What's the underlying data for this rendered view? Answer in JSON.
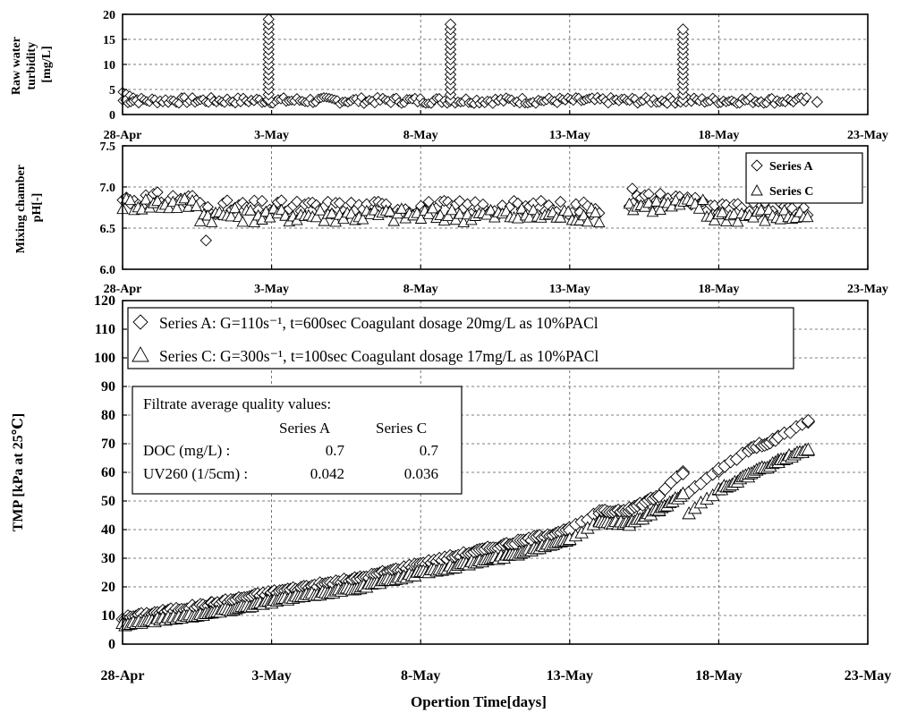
{
  "chart_data": [
    {
      "type": "scatter",
      "ylabel": [
        "Raw water",
        "turbidity",
        "[mg/L]"
      ],
      "ylim": [
        0,
        20
      ],
      "yticks": [
        "0",
        "5",
        "10",
        "15",
        "20"
      ],
      "xlim": [
        "2005-04-28",
        "2005-05-23"
      ],
      "xticks": [
        "28-Apr",
        "3-May",
        "8-May",
        "13-May",
        "18-May",
        "23-May"
      ],
      "grid": true,
      "series": [
        {
          "marker": "diamond",
          "baseline": {
            "start": "2005-04-28",
            "end": "2005-05-21",
            "level": 2.8
          },
          "spikes": [
            {
              "date": "2005-05-02.9",
              "peak": 19.5
            },
            {
              "date": "2005-05-09.0",
              "peak": 18.5
            },
            {
              "date": "2005-05-16.8",
              "peak": 17.5
            }
          ],
          "start_peak": 4.5,
          "end_value": 2.5
        }
      ]
    },
    {
      "type": "scatter",
      "ylabel": [
        "Mixing chamber",
        "pH[-]"
      ],
      "ylim": [
        6.0,
        7.5
      ],
      "yticks": [
        "6.0",
        "6.5",
        "7.0",
        "7.5"
      ],
      "xlim": [
        "2005-04-28",
        "2005-05-23"
      ],
      "xticks": [
        "28-Apr",
        "3-May",
        "8-May",
        "13-May",
        "18-May",
        "23-May"
      ],
      "grid": true,
      "legend": {
        "placement": "top-right",
        "entries": [
          "Series A",
          "Series C"
        ]
      },
      "series": [
        {
          "name": "Series A",
          "marker": "diamond",
          "segments": [
            {
              "start": "2005-04-28",
              "end": "2005-05-14",
              "level": 6.75,
              "early_level": 6.85
            },
            {
              "start": "2005-05-15",
              "end": "2005-05-21",
              "level": 6.72,
              "early_level": 6.85
            }
          ],
          "outliers": [
            {
              "date": "2005-04-30.8",
              "value": 6.35
            },
            {
              "date": "2005-05-15.1",
              "value": 6.98
            }
          ]
        },
        {
          "name": "Series C",
          "marker": "triangle",
          "segments": [
            {
              "start": "2005-04-28",
              "end": "2005-05-14",
              "level": 6.66,
              "early_level": 6.8
            },
            {
              "start": "2005-05-15",
              "end": "2005-05-21",
              "level": 6.66,
              "early_level": 6.78
            }
          ]
        }
      ]
    },
    {
      "type": "scatter",
      "xlabel": "Opertion Time[days]",
      "ylabel": "TMP [kPa at 25℃]",
      "ylim": [
        0,
        120
      ],
      "yticks": [
        "0",
        "10",
        "20",
        "30",
        "40",
        "50",
        "60",
        "70",
        "80",
        "90",
        "100",
        "110",
        "120"
      ],
      "xlim": [
        "2005-04-28",
        "2005-05-23"
      ],
      "xticks": [
        "28-Apr",
        "3-May",
        "8-May",
        "13-May",
        "18-May",
        "23-May"
      ],
      "grid": true,
      "legend": {
        "placement": "top-left",
        "entries": [
          {
            "text": "Series A: G=110s⁻¹, t=600sec  Coagulant  dosage  20mg/L as 10%PACl"
          },
          {
            "text": "Series C: G=300s⁻¹, t=100sec  Coagulant  dosage  17mg/L as 10%PACl"
          }
        ]
      },
      "series": [
        {
          "name": "Series A",
          "marker": "diamond",
          "points": [
            [
              "2005-04-28",
              9
            ],
            [
              "2005-05-01",
              14
            ],
            [
              "2005-05-03",
              18
            ],
            [
              "2005-05-06",
              23
            ],
            [
              "2005-05-08",
              28
            ],
            [
              "2005-05-11",
              35
            ],
            [
              "2005-05-13",
              40
            ],
            [
              "2005-05-14",
              46
            ],
            [
              "2005-05-15",
              47
            ],
            [
              "2005-05-16",
              52
            ],
            [
              "2005-05-16.8",
              60
            ],
            [
              "2005-05-17",
              53
            ],
            [
              "2005-05-18",
              61
            ],
            [
              "2005-05-19",
              68
            ],
            [
              "2005-05-20",
              72
            ],
            [
              "2005-05-21",
              78
            ]
          ]
        },
        {
          "name": "Series C",
          "marker": "triangle",
          "points": [
            [
              "2005-04-28",
              7
            ],
            [
              "2005-05-01",
              11
            ],
            [
              "2005-05-03",
              15
            ],
            [
              "2005-05-06",
              20
            ],
            [
              "2005-05-08",
              25
            ],
            [
              "2005-05-11",
              31
            ],
            [
              "2005-05-13",
              37
            ],
            [
              "2005-05-14",
              43
            ],
            [
              "2005-05-15",
              42
            ],
            [
              "2005-05-16",
              47
            ],
            [
              "2005-05-16.8",
              52
            ],
            [
              "2005-05-17",
              46
            ],
            [
              "2005-05-18",
              54
            ],
            [
              "2005-05-19",
              59
            ],
            [
              "2005-05-20",
              64
            ],
            [
              "2005-05-21",
              68
            ]
          ]
        }
      ]
    }
  ],
  "quality_box": {
    "title": "Filtrate average quality values:",
    "col_a": "Series A",
    "col_c": "Series C",
    "rows": [
      {
        "label": "DOC (mg/L) :",
        "a": "0.7",
        "c": "0.7"
      },
      {
        "label": "UV260 (1/5cm) :",
        "a": "0.042",
        "c": "0.036"
      }
    ]
  }
}
